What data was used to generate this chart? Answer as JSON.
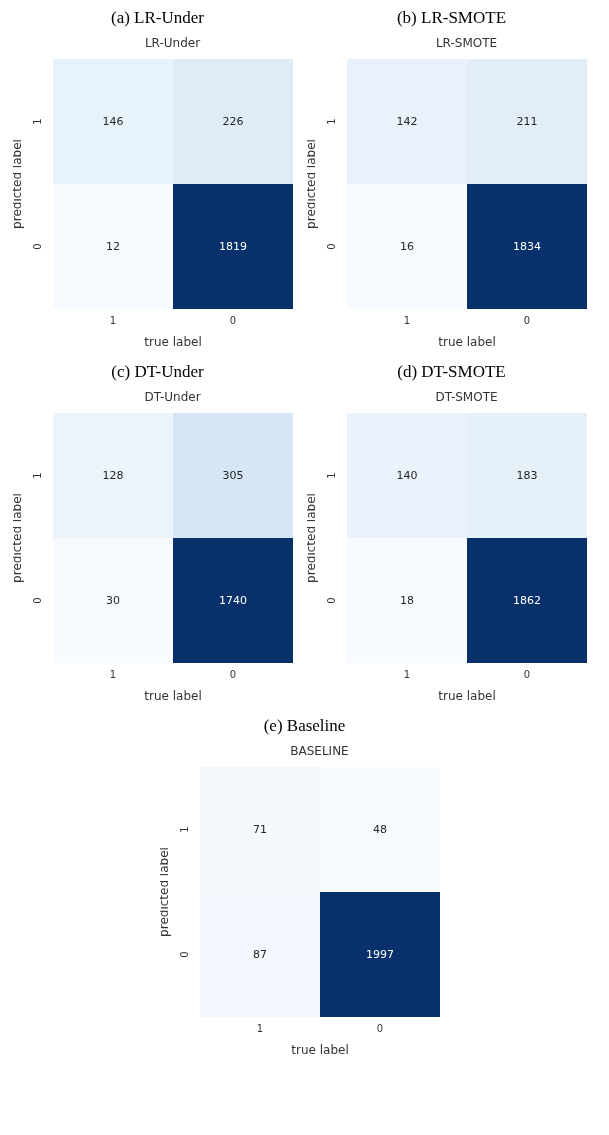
{
  "chart_data": [
    {
      "type": "heatmap",
      "subtitle": "(a) LR-Under",
      "title": "LR-Under",
      "xlabel": "true label",
      "ylabel": "predicted label",
      "categories": [
        "1",
        "0"
      ],
      "y_categories": [
        "1",
        "0"
      ],
      "cells": [
        [
          146,
          226
        ],
        [
          12,
          1819
        ]
      ],
      "data_labels": true
    },
    {
      "type": "heatmap",
      "subtitle": "(b) LR-SMOTE",
      "title": "LR-SMOTE",
      "xlabel": "true label",
      "ylabel": "predicted label",
      "categories": [
        "1",
        "0"
      ],
      "y_categories": [
        "1",
        "0"
      ],
      "cells": [
        [
          142,
          211
        ],
        [
          16,
          1834
        ]
      ],
      "data_labels": true
    },
    {
      "type": "heatmap",
      "subtitle": "(c) DT-Under",
      "title": "DT-Under",
      "xlabel": "true label",
      "ylabel": "predicted label",
      "categories": [
        "1",
        "0"
      ],
      "y_categories": [
        "1",
        "0"
      ],
      "cells": [
        [
          128,
          305
        ],
        [
          30,
          1740
        ]
      ],
      "data_labels": true
    },
    {
      "type": "heatmap",
      "subtitle": "(d) DT-SMOTE",
      "title": "DT-SMOTE",
      "xlabel": "true label",
      "ylabel": "predicted label",
      "categories": [
        "1",
        "0"
      ],
      "y_categories": [
        "1",
        "0"
      ],
      "cells": [
        [
          140,
          183
        ],
        [
          18,
          1862
        ]
      ],
      "data_labels": true
    },
    {
      "type": "heatmap",
      "subtitle": "(e) Baseline",
      "title": "BASELINE",
      "xlabel": "true label",
      "ylabel": "predicted label",
      "categories": [
        "1",
        "0"
      ],
      "y_categories": [
        "1",
        "0"
      ],
      "cells": [
        [
          71,
          48
        ],
        [
          87,
          1997
        ]
      ],
      "data_labels": true
    }
  ]
}
